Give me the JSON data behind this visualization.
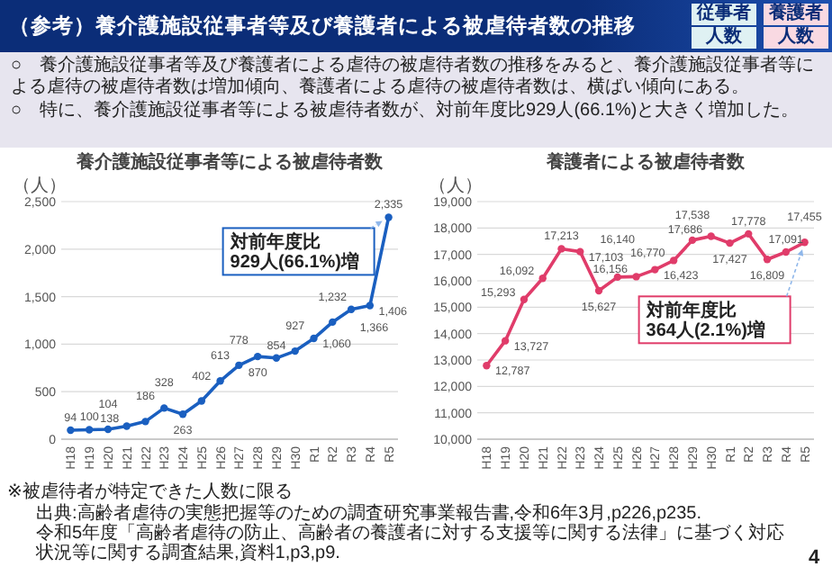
{
  "chart_data": [
    {
      "type": "other",
      "title": "（参考）養介護施設従事者等及び養護者による被虐待者数の推移",
      "annotations": [
        "従事者",
        "人数",
        "養護者",
        "人数",
        "○　養介護施設従事者等及び養護者による虐待の被虐待者数の推移をみると、養介護施設従事者等による虐待の被虐待者数は増加傾向、養護者による虐待の被虐待者数は、横ばい傾向にある。",
        "○　特に、養介護施設従事者等による被虐待者数が、対前年度比929人(66.1%)と大きく増加した。",
        "※被虐待者が特定できた人数に限る",
        "出典:高齢者虐待の実態把握等のための調査研究事業報告書,令和6年3月,p226,p235.",
        "令和5年度「高齢者虐待の防止、高齢者の養護者に対する支援等に関する法律」に基づく対応状況等に関する調査結果,資料1,p3,p9.",
        "4"
      ]
    },
    {
      "type": "line",
      "title": "養介護施設従事者等による被虐待者数",
      "ylabel": "（人）",
      "categories": [
        "H18",
        "H19",
        "H20",
        "H21",
        "H22",
        "H23",
        "H24",
        "H25",
        "H26",
        "H27",
        "H28",
        "H29",
        "H30",
        "R1",
        "R2",
        "R3",
        "R4",
        "R5"
      ],
      "series": [
        {
          "color": "#1a5fc0",
          "values": [
            94,
            100,
            104,
            138,
            186,
            328,
            263,
            402,
            613,
            778,
            870,
            854,
            927,
            1060,
            1232,
            1366,
            1406,
            2335
          ],
          "value_labels": [
            "94",
            "100",
            "104",
            "138",
            "186",
            "328",
            "263",
            "402",
            "613",
            "778",
            "870",
            "854",
            "927",
            "1,060",
            "1,232",
            "1,366",
            "1,406",
            "2,335"
          ]
        }
      ],
      "ylim": [
        0,
        2500
      ],
      "yticks": [
        0,
        500,
        {
          "value": 1000,
          "label": "1,000"
        },
        {
          "value": 1500,
          "label": "1,500"
        },
        {
          "value": 2000,
          "label": "2,000"
        },
        {
          "value": 2500,
          "label": "2,500"
        }
      ],
      "grid": "y",
      "marker": "circle",
      "data_labels": true,
      "annotations": [
        {
          "text": "対前年度比 929人(66.1%)増",
          "x": "R5",
          "y": 2335
        }
      ]
    },
    {
      "type": "line",
      "title": "養護者による被虐待者数",
      "ylabel": "（人）",
      "categories": [
        "H18",
        "H19",
        "H20",
        "H21",
        "H22",
        "H23",
        "H24",
        "H25",
        "H26",
        "H27",
        "H28",
        "H29",
        "H30",
        "R1",
        "R2",
        "R3",
        "R4",
        "R5"
      ],
      "series": [
        {
          "color": "#e03c6a",
          "values": [
            12787,
            13727,
            15293,
            16092,
            17213,
            17103,
            15627,
            16140,
            16156,
            16423,
            16770,
            17538,
            17686,
            17427,
            17778,
            16809,
            17091,
            17455
          ],
          "value_labels": [
            "12,787",
            "13,727",
            "15,293",
            "16,092",
            "17,213",
            "17,103",
            "15,627",
            "16,140",
            "16,156",
            "16,423",
            "16,770",
            "17,538",
            "17,686",
            "17,427",
            "17,778",
            "16,809",
            "17,091",
            "17,455"
          ]
        }
      ],
      "ylim": [
        10000,
        19000
      ],
      "yticks": [
        {
          "value": 10000,
          "label": "10,000"
        },
        {
          "value": 11000,
          "label": "11,000"
        },
        {
          "value": 12000,
          "label": "12,000"
        },
        {
          "value": 13000,
          "label": "13,000"
        },
        {
          "value": 14000,
          "label": "14,000"
        },
        {
          "value": 15000,
          "label": "15,000"
        },
        {
          "value": 16000,
          "label": "16,000"
        },
        {
          "value": 17000,
          "label": "17,000"
        },
        {
          "value": 18000,
          "label": "18,000"
        },
        {
          "value": 19000,
          "label": "19,000"
        }
      ],
      "grid": "y",
      "marker": "circle",
      "data_labels": true,
      "annotations": [
        {
          "text": "対前年度比 364人(2.1%)増",
          "x": "R5",
          "y": 17455
        }
      ]
    }
  ]
}
